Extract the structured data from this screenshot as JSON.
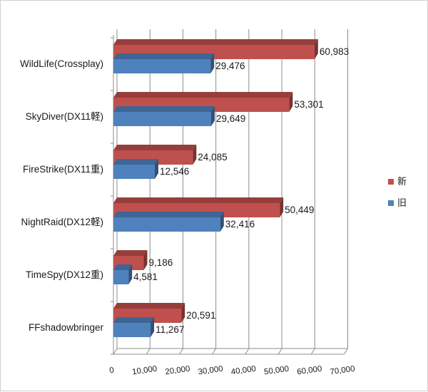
{
  "chart_data": {
    "type": "bar",
    "orientation": "horizontal",
    "style": "3d-clustered",
    "categories": [
      "WildLife(Crossplay)",
      "SkyDiver(DX11軽)",
      "FireStrike(DX11重)",
      "NightRaid(DX12軽)",
      "TimeSpy(DX12重)",
      "FFshadowbringer"
    ],
    "series": [
      {
        "name": "新",
        "color": "#c0504d",
        "values": [
          60983,
          53301,
          24085,
          50449,
          9186,
          20591
        ],
        "labels": [
          "60,983",
          "53,301",
          "24,085",
          "50,449",
          "9,186",
          "20,591"
        ]
      },
      {
        "name": "旧",
        "color": "#4f81bd",
        "values": [
          29476,
          29649,
          12546,
          32416,
          4581,
          11267
        ],
        "labels": [
          "29,476",
          "29,649",
          "12,546",
          "32,416",
          "4,581",
          "11,267"
        ]
      }
    ],
    "xlim": [
      0,
      70000
    ],
    "ticks": [
      0,
      10000,
      20000,
      30000,
      40000,
      50000,
      60000,
      70000
    ],
    "tick_labels": [
      "0",
      "10,000",
      "20,000",
      "30,000",
      "40,000",
      "50,000",
      "60,000",
      "70,000"
    ],
    "grid": true,
    "legend_position": "right"
  }
}
